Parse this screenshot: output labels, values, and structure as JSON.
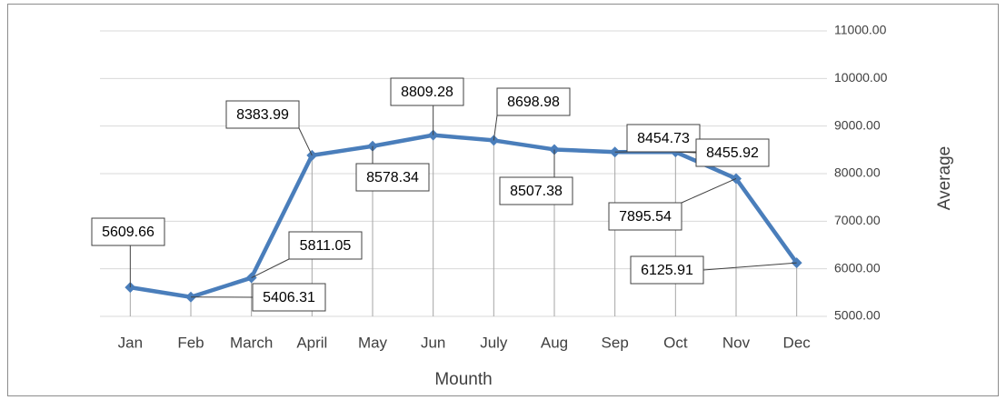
{
  "chart_data": {
    "type": "line",
    "categories": [
      "Jan",
      "Feb",
      "March",
      "April",
      "May",
      "Jun",
      "July",
      "Aug",
      "Sep",
      "Oct",
      "Nov",
      "Dec"
    ],
    "series": [
      {
        "name": "Average",
        "color": "#4a7ebb",
        "values": [
          5609.66,
          5406.31,
          5811.05,
          8383.99,
          8578.34,
          8809.28,
          8698.98,
          8507.38,
          8454.73,
          8455.92,
          7895.54,
          6125.91
        ]
      }
    ],
    "x_label": "Mounth",
    "y_label": "Average",
    "ylim": [
      5000,
      11000
    ],
    "yticks": [
      {
        "value": 5000,
        "label": "5000.00"
      },
      {
        "value": 6000,
        "label": "6000.00"
      },
      {
        "value": 7000,
        "label": "7000.00"
      },
      {
        "value": 8000,
        "label": "8000.00"
      },
      {
        "value": 9000,
        "label": "9000.00"
      },
      {
        "value": 10000,
        "label": "10000.00"
      },
      {
        "value": 11000,
        "label": "11000.00"
      }
    ],
    "grid": true,
    "y_axis_side": "right",
    "drop_lines": true
  }
}
